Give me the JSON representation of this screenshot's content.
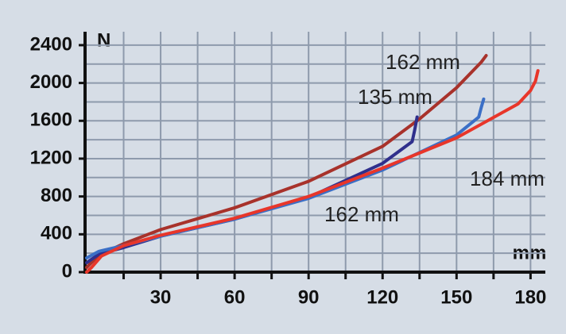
{
  "chart_data": {
    "type": "line",
    "y_label": "N",
    "x_label": "mm",
    "xlim": [
      0,
      186
    ],
    "ylim": [
      0,
      2500
    ],
    "xticks": [
      30,
      60,
      90,
      120,
      150,
      180
    ],
    "yticks": [
      0,
      400,
      800,
      1200,
      1600,
      2000,
      2400
    ],
    "minor_xticks": [
      15,
      45,
      75,
      105,
      135,
      165
    ],
    "minor_yticks": [
      200,
      600,
      1000,
      1400,
      1800,
      2200
    ],
    "grid": true,
    "series": [
      {
        "name": "162 mm",
        "color": "#a8322b",
        "x": [
          0,
          5,
          15,
          30,
          60,
          90,
          120,
          135,
          150,
          160,
          162
        ],
        "values": [
          50,
          180,
          300,
          450,
          680,
          960,
          1330,
          1620,
          1950,
          2220,
          2290
        ]
      },
      {
        "name": "135 mm",
        "color": "#2f2f8c",
        "x": [
          0,
          5,
          15,
          30,
          60,
          90,
          120,
          132,
          133,
          134
        ],
        "values": [
          100,
          190,
          260,
          380,
          560,
          790,
          1150,
          1380,
          1500,
          1640
        ]
      },
      {
        "name": "162 mm",
        "color": "#3b6fc6",
        "x": [
          0,
          5,
          15,
          30,
          60,
          90,
          120,
          150,
          159,
          160,
          161
        ],
        "values": [
          150,
          220,
          280,
          380,
          560,
          780,
          1080,
          1450,
          1640,
          1740,
          1830
        ]
      },
      {
        "name": "184 mm",
        "color": "#e8362a",
        "x": [
          0,
          2,
          6,
          15,
          30,
          60,
          90,
          120,
          150,
          175,
          180,
          182,
          183
        ],
        "values": [
          0,
          50,
          170,
          280,
          390,
          570,
          800,
          1100,
          1420,
          1780,
          1920,
          2020,
          2130
        ]
      }
    ]
  }
}
